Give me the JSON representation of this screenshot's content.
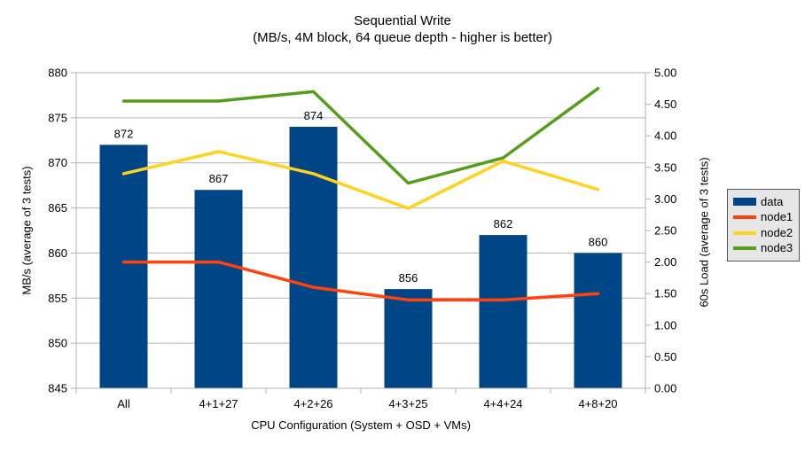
{
  "title": "Sequential Write",
  "subtitle": "(MB/s, 4M block, 64 queue depth - higher is better)",
  "chart_data": {
    "type": "bar",
    "title": "Sequential Write",
    "subtitle": "(MB/s, 4M block, 64 queue depth - higher is better)",
    "categories": [
      "All",
      "4+1+27",
      "4+2+26",
      "4+3+25",
      "4+4+24",
      "4+8+20"
    ],
    "xlabel": "CPU Configuration (System + OSD + VMs)",
    "grid": "horizontal",
    "legend_position": "right",
    "y_left": {
      "label": "MB/s (average of 3 tests)",
      "min": 845,
      "max": 880,
      "tick_step": 5,
      "tick_labels": [
        "845",
        "850",
        "855",
        "860",
        "865",
        "870",
        "875",
        "880"
      ]
    },
    "y_right": {
      "label": "60s Load (average of 3 tests)",
      "min": 0,
      "max": 5,
      "tick_step": 0.5,
      "tick_labels": [
        "0.00",
        "0.50",
        "1.00",
        "1.50",
        "2.00",
        "2.50",
        "3.00",
        "3.50",
        "4.00",
        "4.50",
        "5.00"
      ]
    },
    "series": [
      {
        "name": "data",
        "type": "bar",
        "axis": "left",
        "color": "#004586",
        "values": [
          872,
          867,
          874,
          856,
          862,
          860
        ],
        "data_labels": [
          "872",
          "867",
          "874",
          "856",
          "862",
          "860"
        ]
      },
      {
        "name": "node1",
        "type": "line",
        "axis": "right",
        "color": "#FF420E",
        "values": [
          2.0,
          2.0,
          1.6,
          1.4,
          1.4,
          1.5
        ]
      },
      {
        "name": "node2",
        "type": "line",
        "axis": "right",
        "color": "#FFD320",
        "values": [
          3.4,
          3.75,
          3.4,
          2.85,
          3.6,
          3.15
        ]
      },
      {
        "name": "node3",
        "type": "line",
        "axis": "right",
        "color": "#579D1C",
        "values": [
          4.55,
          4.55,
          4.7,
          3.25,
          3.65,
          4.75
        ]
      }
    ],
    "colors": {
      "gridline": "#b3b3b3",
      "axis": "#b3b3b3",
      "legend_bg": "#e6e6e6",
      "legend_border": "#555555",
      "text": "#000000",
      "background": "#ffffff"
    }
  }
}
